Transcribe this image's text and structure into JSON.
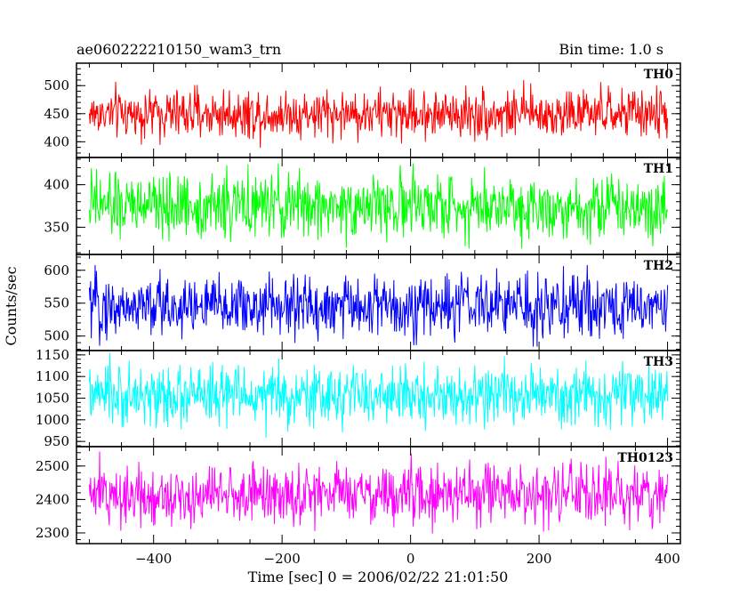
{
  "header": {
    "title": "ae060222210150_wam3_trn",
    "bin_time": "Bin time: 1.0 s"
  },
  "axes": {
    "xlabel": "Time [sec] 0 = 2006/02/22 21:01:50",
    "ylabel": "Counts/sec"
  },
  "chart_data": {
    "type": "line",
    "title": "ae060222210150_wam3_trn",
    "subtitle": "Bin time: 1.0 s",
    "xlabel": "Time [sec] 0 = 2006/02/22 21:01:50",
    "ylabel": "Counts/sec",
    "xlim": [
      -520,
      420
    ],
    "x_range": [
      -500,
      400
    ],
    "x_step": 1,
    "x_ticks": [
      -400,
      -200,
      0,
      200,
      400
    ],
    "legend": "panel labels top-right",
    "panels": [
      {
        "name": "TH0",
        "color": "#ff0000",
        "ylim": [
          372,
          540
        ],
        "y_ticks": [
          400,
          450,
          500
        ],
        "mean": 450,
        "spread": 22,
        "peak_range": [
          378,
          528
        ]
      },
      {
        "name": "TH1",
        "color": "#00ff00",
        "ylim": [
          318,
          432
        ],
        "y_ticks": [
          350,
          400
        ],
        "mean": 375,
        "spread": 19,
        "peak_range": [
          325,
          425
        ]
      },
      {
        "name": "TH2",
        "color": "#0000ff",
        "ylim": [
          478,
          624
        ],
        "y_ticks": [
          500,
          550,
          600
        ],
        "mean": 545,
        "spread": 24,
        "peak_range": [
          484,
          618
        ]
      },
      {
        "name": "TH3",
        "color": "#00ffff",
        "ylim": [
          938,
          1160
        ],
        "y_ticks": [
          950,
          1000,
          1050,
          1100,
          1150
        ],
        "mean": 1055,
        "spread": 34,
        "peak_range": [
          945,
          1155
        ]
      },
      {
        "name": "TH0123",
        "color": "#ff00ff",
        "ylim": [
          2268,
          2558
        ],
        "y_ticks": [
          2300,
          2400,
          2500
        ],
        "mean": 2415,
        "spread": 45,
        "peak_range": [
          2295,
          2552
        ]
      }
    ]
  }
}
